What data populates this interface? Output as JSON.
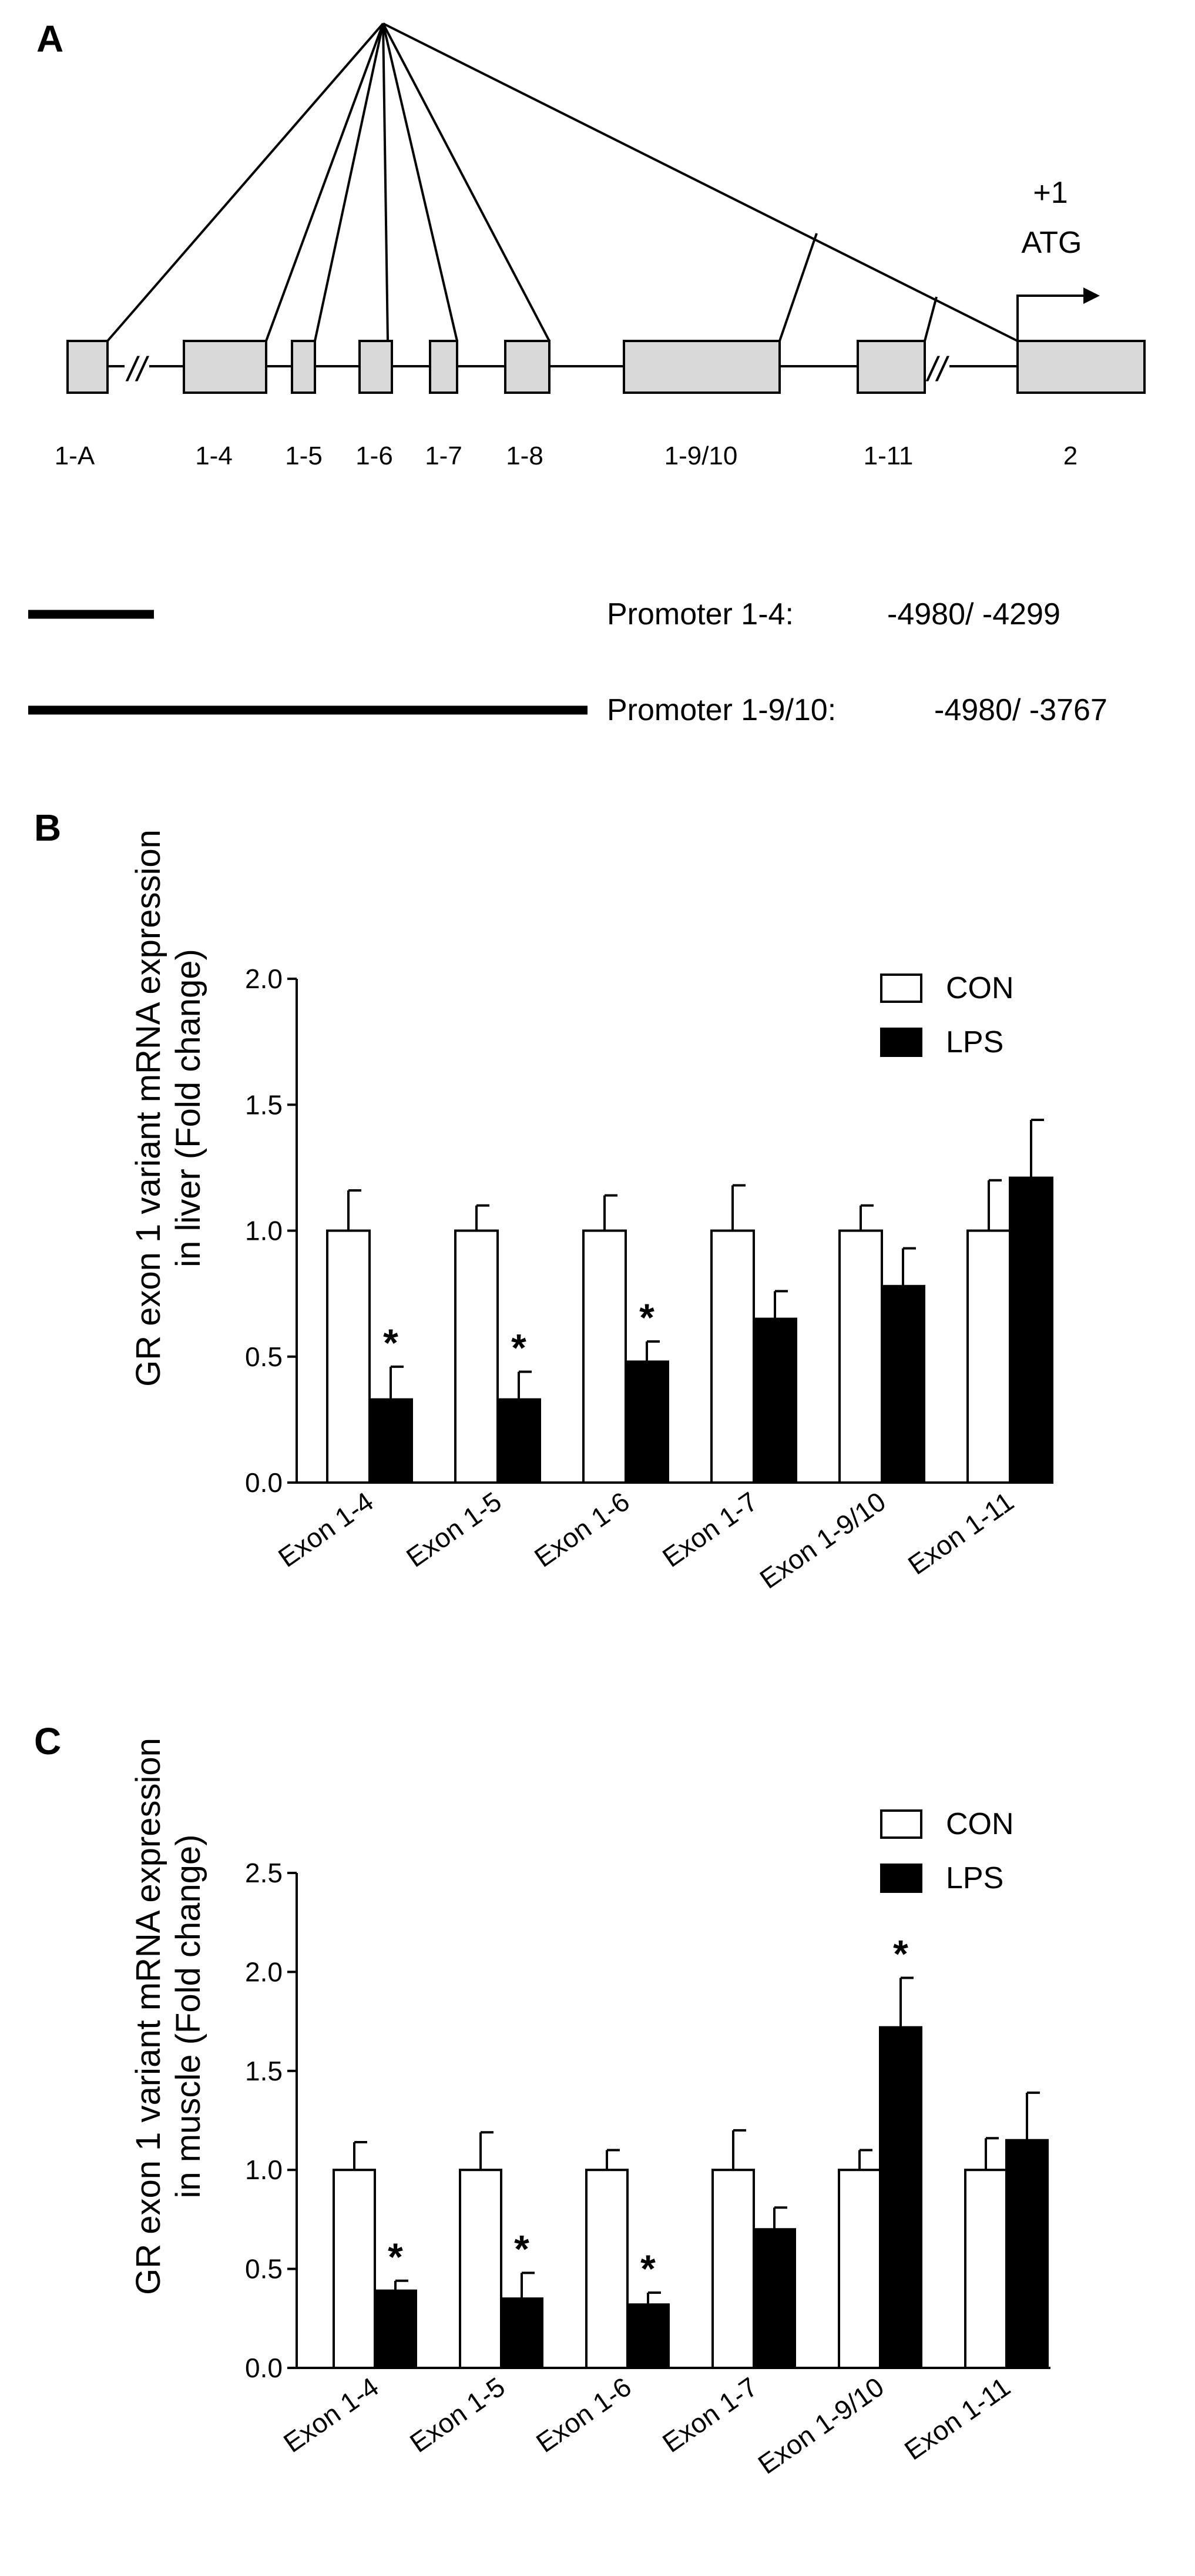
{
  "figure": {
    "panels": [
      {
        "letter": "A"
      },
      {
        "letter": "B"
      },
      {
        "letter": "C"
      }
    ]
  },
  "gene_diagram": {
    "arrow_label_1": "+1",
    "arrow_label_2": "ATG",
    "break_symbol": "//",
    "exons": [
      "1-A",
      "1-4",
      "1-5",
      "1-6",
      "1-7",
      "1-8",
      "1-9/10",
      "1-11",
      "2"
    ],
    "promoters": [
      {
        "label": "Promoter 1-4:",
        "range": "-4980/ -4299"
      },
      {
        "label": "Promoter 1-9/10:",
        "range": "-4980/ -3767"
      }
    ]
  },
  "colors": {
    "con": "#ffffff",
    "lps": "#000000",
    "exon_fill": "#d9d9d9"
  },
  "chart_data": [
    {
      "type": "bar",
      "ylabel_line1": "GR exon 1 variant mRNA expression",
      "ylabel_line2": "in liver (Fold change)",
      "categories": [
        "Exon 1-4",
        "Exon 1-5",
        "Exon 1-6",
        "Exon 1-7",
        "Exon 1-9/10",
        "Exon 1-11"
      ],
      "ylim": [
        0,
        2.0
      ],
      "yticks": [
        "0.0",
        "0.5",
        "1.0",
        "1.5",
        "2.0"
      ],
      "series": [
        {
          "name": "CON",
          "values": [
            1.0,
            1.0,
            1.0,
            1.0,
            1.0,
            1.0
          ],
          "errors": [
            0.16,
            0.1,
            0.14,
            0.18,
            0.1,
            0.2
          ]
        },
        {
          "name": "LPS",
          "values": [
            0.33,
            0.33,
            0.48,
            0.65,
            0.78,
            1.21
          ],
          "errors": [
            0.13,
            0.11,
            0.08,
            0.11,
            0.15,
            0.23
          ]
        }
      ],
      "significance": [
        "*",
        "*",
        "*",
        "",
        "",
        ""
      ],
      "legend": [
        "CON",
        "LPS"
      ]
    },
    {
      "type": "bar",
      "ylabel_line1": "GR exon 1 variant mRNA expression",
      "ylabel_line2": "in muscle (Fold change)",
      "categories": [
        "Exon 1-4",
        "Exon 1-5",
        "Exon 1-6",
        "Exon 1-7",
        "Exon 1-9/10",
        "Exon 1-11"
      ],
      "ylim": [
        0,
        2.5
      ],
      "yticks": [
        "0.0",
        "0.5",
        "1.0",
        "1.5",
        "2.0",
        "2.5"
      ],
      "series": [
        {
          "name": "CON",
          "values": [
            1.0,
            1.0,
            1.0,
            1.0,
            1.0,
            1.0
          ],
          "errors": [
            0.14,
            0.19,
            0.1,
            0.2,
            0.1,
            0.16
          ]
        },
        {
          "name": "LPS",
          "values": [
            0.39,
            0.35,
            0.32,
            0.7,
            1.72,
            1.15
          ],
          "errors": [
            0.05,
            0.13,
            0.06,
            0.11,
            0.25,
            0.24
          ]
        }
      ],
      "significance": [
        "*",
        "*",
        "*",
        "",
        "*",
        ""
      ],
      "legend": [
        "CON",
        "LPS"
      ]
    }
  ]
}
